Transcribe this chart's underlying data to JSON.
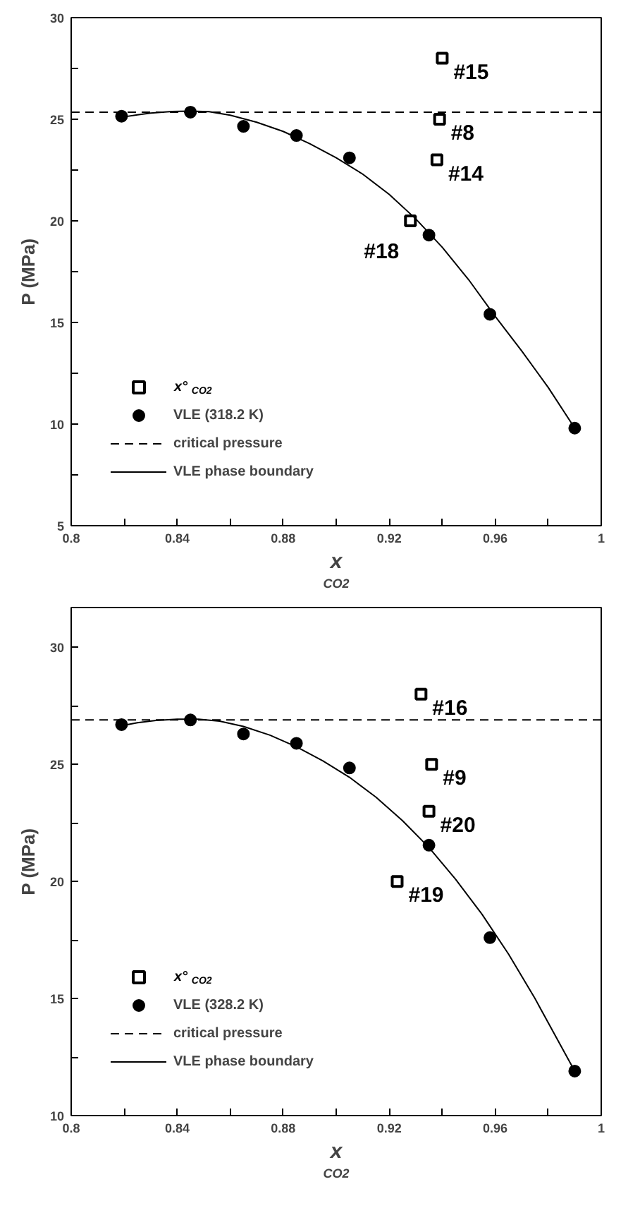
{
  "chart_data": [
    {
      "type": "scatter",
      "xlabel": "x$_{CO2}$",
      "ylabel": "P (MPa)",
      "xlim": [
        0.8,
        1
      ],
      "ylim": [
        5,
        30
      ],
      "xticks": [
        0.8,
        {
          "value": 0.82,
          "label": null
        },
        0.84,
        {
          "value": 0.86,
          "label": null
        },
        0.88,
        {
          "value": 0.9,
          "label": null
        },
        0.92,
        {
          "value": 0.94,
          "label": null
        },
        0.96,
        {
          "value": 0.98,
          "label": null
        },
        1
      ],
      "yticks": [
        5,
        {
          "value": 7.5,
          "label": null
        },
        10,
        {
          "value": 12.5,
          "label": null
        },
        15,
        {
          "value": 17.5,
          "label": null
        },
        20,
        {
          "value": 22.5,
          "label": null
        },
        25,
        {
          "value": 27.5,
          "label": null
        },
        30
      ],
      "legend": "bottom left",
      "series": [
        {
          "name": "x°$_{CO2}$",
          "marker": "square",
          "color": "#000000",
          "x": [
            0.94,
            0.939,
            0.938,
            0.928
          ],
          "values": [
            28.0,
            25.0,
            23.0,
            20.0
          ]
        },
        {
          "name": "VLE (318.2 K)",
          "marker": "circle",
          "color": "#000000",
          "x": [
            0.819,
            0.845,
            0.865,
            0.885,
            0.905,
            0.935,
            0.958,
            0.99
          ],
          "values": [
            25.15,
            25.35,
            24.65,
            24.2,
            23.1,
            19.3,
            15.4,
            9.8
          ]
        },
        {
          "name": "VLE phase boundary",
          "type": "line",
          "line_style": "solid",
          "color": "#000000",
          "x": [
            0.819,
            0.825,
            0.83,
            0.838,
            0.845,
            0.852,
            0.86,
            0.87,
            0.88,
            0.89,
            0.9,
            0.91,
            0.92,
            0.93,
            0.94,
            0.95,
            0.96,
            0.97,
            0.98,
            0.99
          ],
          "values": [
            25.1,
            25.22,
            25.3,
            25.38,
            25.4,
            25.37,
            25.2,
            24.85,
            24.4,
            23.8,
            23.1,
            22.3,
            21.3,
            20.1,
            18.7,
            17.1,
            15.3,
            13.6,
            11.8,
            9.8
          ]
        }
      ],
      "ref_lines": [
        {
          "axis": "y",
          "value": 25.35,
          "label": "critical pressure",
          "color": "#000000",
          "line_style": "dashed"
        }
      ],
      "annotations": [
        {
          "text": "#15",
          "x": 0.94,
          "y": 28.0
        },
        {
          "text": "#8",
          "x": 0.939,
          "y": 25.0
        },
        {
          "text": "#14",
          "x": 0.938,
          "y": 23.0
        },
        {
          "text": "#18",
          "x": 0.928,
          "y": 20.0
        }
      ]
    },
    {
      "type": "scatter",
      "xlabel": "x$_{CO2}$",
      "ylabel": "P (MPa)",
      "xlim": [
        0.8,
        1
      ],
      "ylim": [
        10,
        31.7
      ],
      "xticks": [
        0.8,
        {
          "value": 0.82,
          "label": null
        },
        0.84,
        {
          "value": 0.86,
          "label": null
        },
        0.88,
        {
          "value": 0.9,
          "label": null
        },
        0.92,
        {
          "value": 0.94,
          "label": null
        },
        0.96,
        {
          "value": 0.98,
          "label": null
        },
        1
      ],
      "yticks": [
        10,
        {
          "value": 12.5,
          "label": null
        },
        15,
        {
          "value": 17.5,
          "label": null
        },
        20,
        {
          "value": 22.5,
          "label": null
        },
        25,
        {
          "value": 27.5,
          "label": null
        },
        30
      ],
      "legend": "bottom left",
      "series": [
        {
          "name": "x°$_{CO2}$",
          "marker": "square",
          "color": "#000000",
          "x": [
            0.932,
            0.936,
            0.935,
            0.923
          ],
          "values": [
            28.0,
            25.0,
            23.0,
            20.0
          ]
        },
        {
          "name": "VLE (328.2 K)",
          "marker": "circle",
          "color": "#000000",
          "x": [
            0.819,
            0.845,
            0.865,
            0.885,
            0.905,
            0.935,
            0.958,
            0.99
          ],
          "values": [
            26.7,
            26.9,
            26.3,
            25.9,
            24.85,
            21.55,
            17.6,
            11.9
          ]
        },
        {
          "name": "VLE phase boundary",
          "type": "line",
          "line_style": "solid",
          "color": "#000000",
          "x": [
            0.819,
            0.825,
            0.832,
            0.84,
            0.848,
            0.856,
            0.865,
            0.875,
            0.885,
            0.895,
            0.905,
            0.915,
            0.925,
            0.935,
            0.945,
            0.955,
            0.965,
            0.975,
            0.99
          ],
          "values": [
            26.65,
            26.78,
            26.88,
            26.93,
            26.93,
            26.85,
            26.62,
            26.25,
            25.75,
            25.15,
            24.45,
            23.6,
            22.6,
            21.45,
            20.1,
            18.6,
            16.9,
            15.0,
            11.9
          ]
        }
      ],
      "ref_lines": [
        {
          "axis": "y",
          "value": 26.9,
          "label": "critical pressure",
          "color": "#000000",
          "line_style": "dashed"
        }
      ],
      "annotations": [
        {
          "text": "#16",
          "x": 0.932,
          "y": 28.0
        },
        {
          "text": "#9",
          "x": 0.936,
          "y": 25.0
        },
        {
          "text": "#20",
          "x": 0.935,
          "y": 23.0
        },
        {
          "text": "#19",
          "x": 0.923,
          "y": 20.0
        }
      ]
    }
  ]
}
